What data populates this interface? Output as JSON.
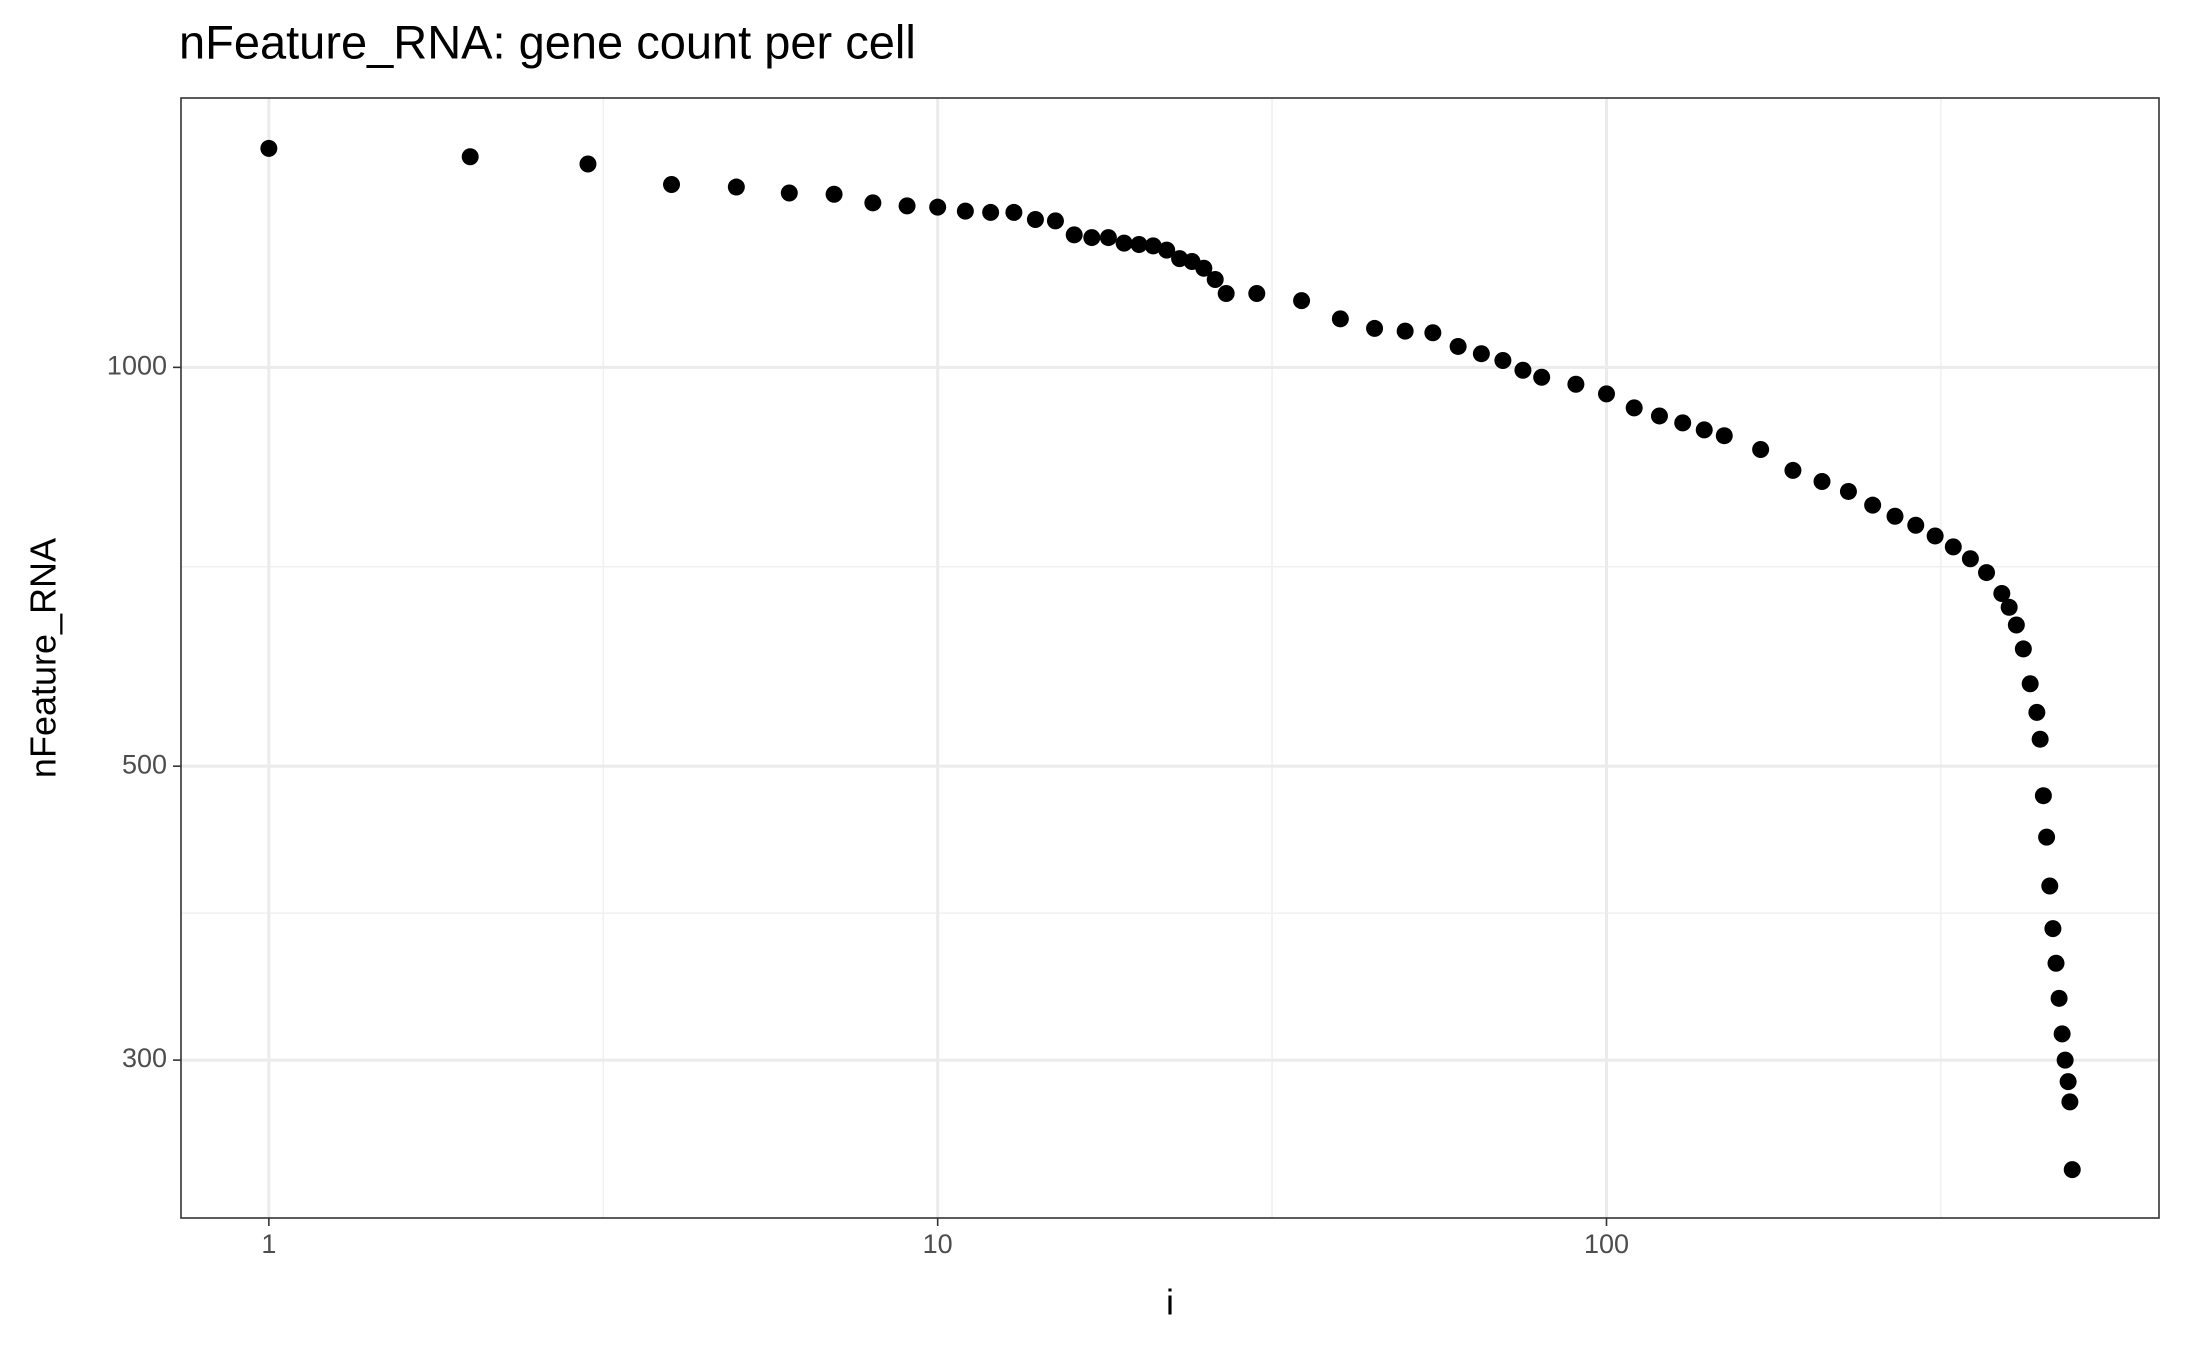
{
  "chart_data": {
    "type": "scatter",
    "title": "nFeature_RNA: gene count per cell",
    "x_label": "i",
    "y_label": "nFeature_RNA",
    "x_scale": "log",
    "y_scale": "log",
    "grid": true,
    "color": "#000000",
    "xlim": [
      0.739,
      670
    ],
    "ylim": [
      228,
      1597
    ],
    "xticks": [
      1,
      10,
      100
    ],
    "yticks": [
      300,
      500,
      1000
    ],
    "xminor": [
      3.162,
      31.62,
      316.2
    ],
    "yminor": [
      387.3,
      707.1
    ],
    "x": [
      1,
      2,
      3,
      4,
      5,
      6,
      7,
      8,
      9,
      10,
      11,
      12,
      13,
      14,
      15,
      16,
      17,
      18,
      19,
      20,
      21,
      22,
      23,
      24,
      25,
      26,
      27,
      30,
      35,
      40,
      45,
      50,
      55,
      60,
      65,
      70,
      75,
      80,
      90,
      100,
      110,
      120,
      130,
      140,
      150,
      170,
      190,
      210,
      230,
      250,
      270,
      290,
      310,
      330,
      350,
      370,
      390,
      400,
      410,
      420,
      430,
      440,
      445,
      450,
      455,
      460,
      465,
      470,
      475,
      480,
      485,
      490,
      493,
      497
    ],
    "values": [
      1463,
      1442,
      1424,
      1374,
      1368,
      1354,
      1351,
      1331,
      1324,
      1321,
      1312,
      1309,
      1309,
      1293,
      1290,
      1259,
      1253,
      1253,
      1241,
      1238,
      1235,
      1226,
      1208,
      1202,
      1188,
      1165,
      1137,
      1137,
      1123,
      1088,
      1070,
      1065,
      1062,
      1037,
      1024,
      1012,
      995,
      983,
      971,
      955,
      932,
      919,
      908,
      897,
      888,
      867,
      836,
      820,
      806,
      787,
      772,
      760,
      746,
      732,
      717,
      700,
      675,
      659,
      639,
      613,
      577,
      549,
      524,
      475,
      442,
      406,
      377,
      355,
      334,
      314,
      300,
      289,
      279,
      248
    ]
  }
}
